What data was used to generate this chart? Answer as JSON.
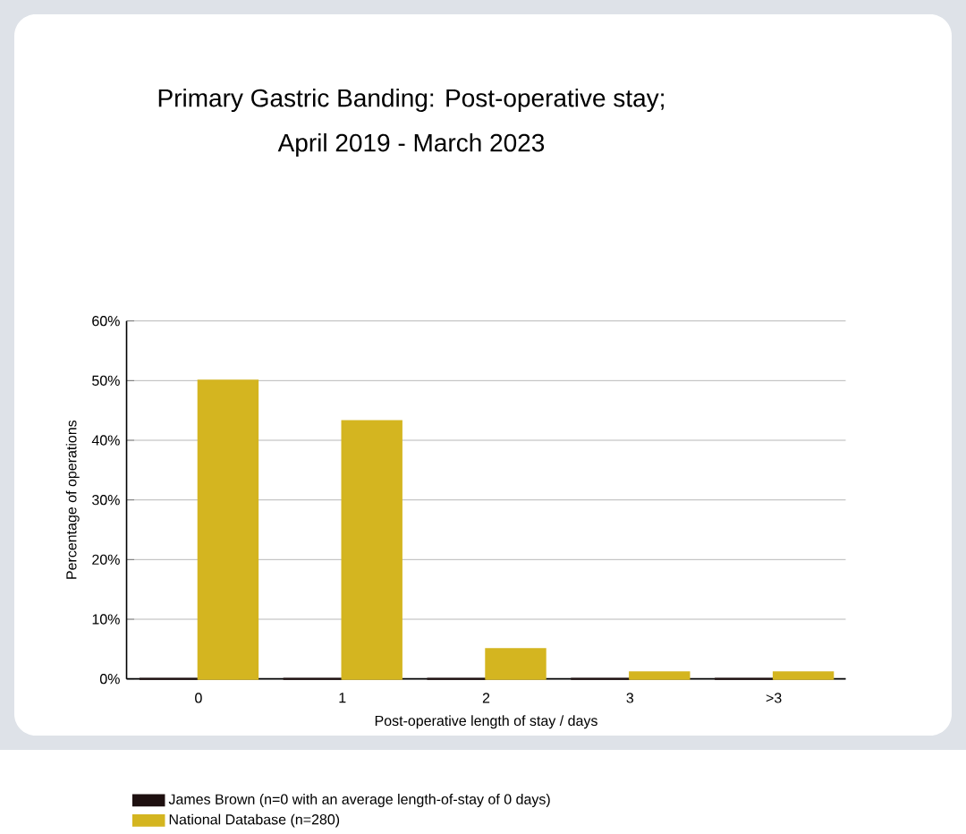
{
  "chart_data": {
    "type": "bar",
    "title": "Primary Gastric Banding: Post-operative stay;",
    "subtitle": "April 2019 - March 2023",
    "xlabel": "Post-operative length of stay / days",
    "ylabel": "Percentage of operations",
    "categories": [
      "0",
      "1",
      "2",
      "3",
      ">3"
    ],
    "series": [
      {
        "name": "James Brown (n=0 with an average length-of-stay of 0 days)",
        "color": "#1e1010",
        "values": [
          0,
          0,
          0,
          0,
          0
        ]
      },
      {
        "name": "National Database (n=280)",
        "color": "#d4b520",
        "values": [
          50,
          43.2,
          5,
          1.1,
          1.1
        ]
      }
    ],
    "ylim": [
      0,
      60
    ],
    "yticks": [
      {
        "value": 0,
        "label": "0%"
      },
      {
        "value": 10,
        "label": "10%"
      },
      {
        "value": 20,
        "label": "20%"
      },
      {
        "value": 30,
        "label": "30%"
      },
      {
        "value": 40,
        "label": "40%"
      },
      {
        "value": 50,
        "label": "50%"
      },
      {
        "value": 60,
        "label": "60%"
      }
    ],
    "grid": "y",
    "legend": "bottom"
  }
}
